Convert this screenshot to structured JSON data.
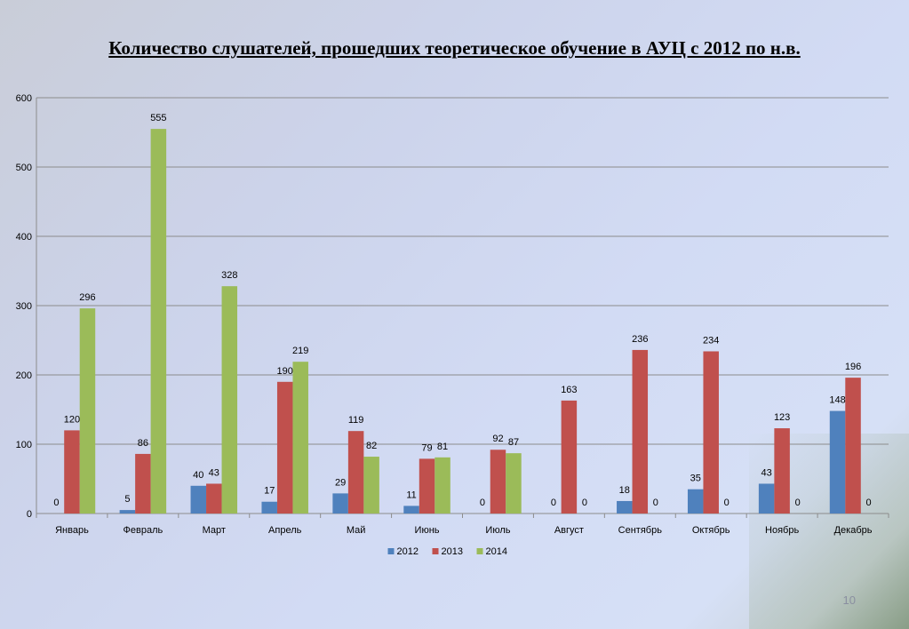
{
  "slide": {
    "title": "Количество слушателей, прошедших теоретическое обучение в АУЦ с 2012 по н.в.",
    "page_number": "10"
  },
  "chart_data": {
    "type": "bar",
    "title": "",
    "xlabel": "",
    "ylabel": "",
    "ylim": [
      0,
      600
    ],
    "yticks": [
      0,
      100,
      200,
      300,
      400,
      500,
      600
    ],
    "grid": true,
    "legend_position": "bottom",
    "categories": [
      "Январь",
      "Февраль",
      "Март",
      "Апрель",
      "Май",
      "Июнь",
      "Июль",
      "Август",
      "Сентябрь",
      "Октябрь",
      "Ноябрь",
      "Декабрь"
    ],
    "series": [
      {
        "name": "2012",
        "color": "#4f81bd",
        "values": [
          0,
          5,
          40,
          17,
          29,
          11,
          0,
          0,
          18,
          35,
          43,
          148
        ],
        "labels": [
          "0",
          "5",
          "40",
          "17",
          "29",
          "11",
          "0",
          "0",
          "18",
          "35",
          "43",
          "148"
        ]
      },
      {
        "name": "2013",
        "color": "#c0504d",
        "values": [
          120,
          86,
          43,
          190,
          119,
          79,
          92,
          163,
          236,
          234,
          123,
          196
        ],
        "labels": [
          "120",
          "86",
          "43",
          "190",
          "119",
          "79",
          "92",
          "163",
          "236",
          "234",
          "123",
          "196"
        ]
      },
      {
        "name": "2014",
        "color": "#9bbb59",
        "values": [
          296,
          555,
          328,
          219,
          82,
          81,
          87,
          null,
          null,
          null,
          null,
          null
        ],
        "labels": [
          "296",
          "555",
          "328",
          "219",
          "82",
          "81",
          "87",
          "0",
          "0",
          "0",
          "0",
          "0"
        ]
      }
    ]
  }
}
